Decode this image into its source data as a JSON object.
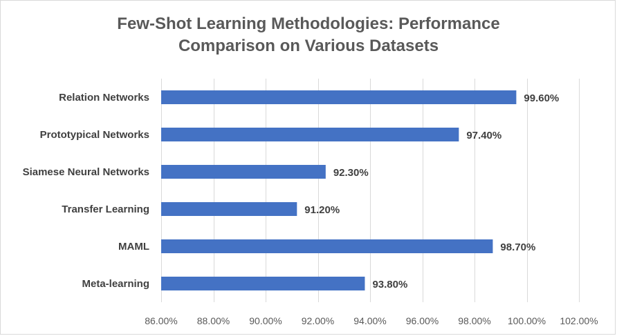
{
  "chart_data": {
    "type": "bar",
    "orientation": "horizontal",
    "title": "Few-Shot Learning Methodologies: Performance\nComparison on Various Datasets",
    "categories": [
      "Relation Networks",
      "Prototypical Networks",
      "Siamese Neural Networks",
      "Transfer Learning",
      "MAML",
      "Meta-learning"
    ],
    "values": [
      99.6,
      97.4,
      92.3,
      91.2,
      98.7,
      93.8
    ],
    "data_labels": [
      "99.60%",
      "97.40%",
      "92.30%",
      "91.20%",
      "98.70%",
      "93.80%"
    ],
    "xlim": [
      86,
      102
    ],
    "xticks": [
      86,
      88,
      90,
      92,
      94,
      96,
      98,
      100,
      102
    ],
    "xtick_labels": [
      "86.00%",
      "88.00%",
      "90.00%",
      "92.00%",
      "94.00%",
      "96.00%",
      "98.00%",
      "100.00%",
      "102.00%"
    ],
    "grid": true,
    "legend": "none",
    "bar_color": "#4472c4",
    "xlabel": "",
    "ylabel": ""
  }
}
